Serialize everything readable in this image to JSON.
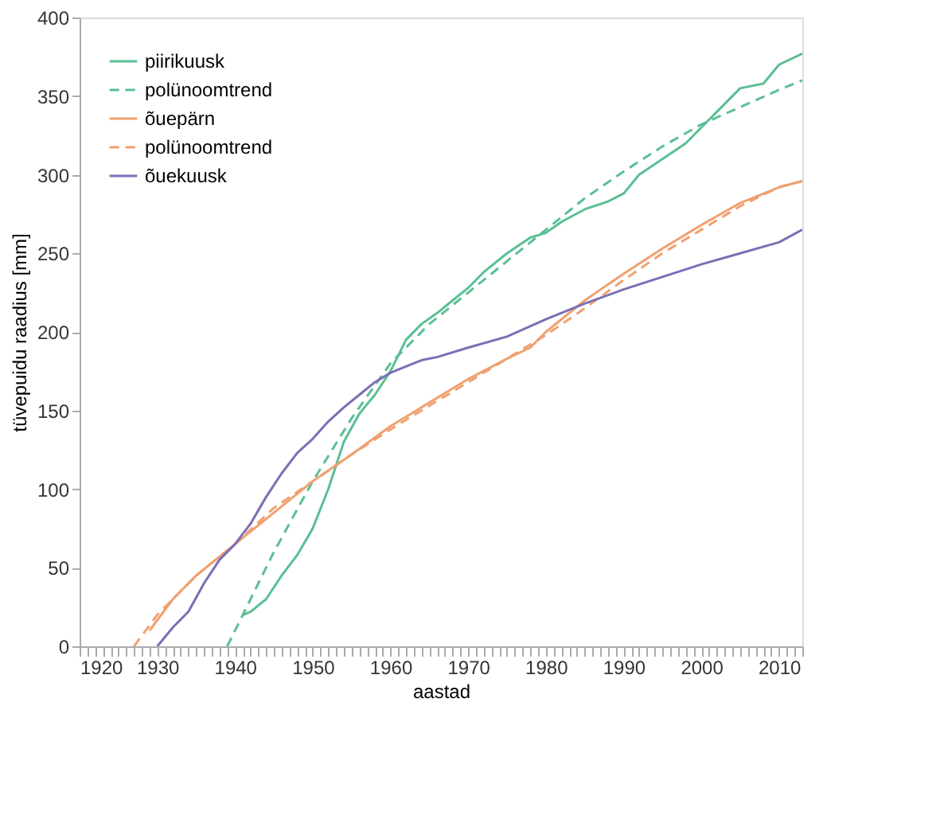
{
  "chart_data": {
    "type": "line",
    "xlabel": "aastad",
    "ylabel": "tüvepuidu raadius [mm]",
    "xlim": [
      1920,
      2013
    ],
    "ylim": [
      0,
      400
    ],
    "yticks": [
      0,
      50,
      100,
      150,
      200,
      250,
      300,
      350,
      400
    ],
    "xticks": [
      1920,
      {
        "value": 1921,
        "label": null
      },
      {
        "value": 1922,
        "label": null
      },
      {
        "value": 1923,
        "label": null
      },
      {
        "value": 1924,
        "label": null
      },
      {
        "value": 1925,
        "label": null
      },
      {
        "value": 1926,
        "label": null
      },
      {
        "value": 1927,
        "label": null
      },
      {
        "value": 1928,
        "label": null
      },
      {
        "value": 1929,
        "label": null
      },
      1930,
      {
        "value": 1931,
        "label": null
      },
      {
        "value": 1932,
        "label": null
      },
      {
        "value": 1933,
        "label": null
      },
      {
        "value": 1934,
        "label": null
      },
      {
        "value": 1935,
        "label": null
      },
      {
        "value": 1936,
        "label": null
      },
      {
        "value": 1937,
        "label": null
      },
      {
        "value": 1938,
        "label": null
      },
      {
        "value": 1939,
        "label": null
      },
      1940,
      {
        "value": 1941,
        "label": null
      },
      {
        "value": 1942,
        "label": null
      },
      {
        "value": 1943,
        "label": null
      },
      {
        "value": 1944,
        "label": null
      },
      {
        "value": 1945,
        "label": null
      },
      {
        "value": 1946,
        "label": null
      },
      {
        "value": 1947,
        "label": null
      },
      {
        "value": 1948,
        "label": null
      },
      {
        "value": 1949,
        "label": null
      },
      1950,
      {
        "value": 1951,
        "label": null
      },
      {
        "value": 1952,
        "label": null
      },
      {
        "value": 1953,
        "label": null
      },
      {
        "value": 1954,
        "label": null
      },
      {
        "value": 1955,
        "label": null
      },
      {
        "value": 1956,
        "label": null
      },
      {
        "value": 1957,
        "label": null
      },
      {
        "value": 1958,
        "label": null
      },
      {
        "value": 1959,
        "label": null
      },
      1960,
      {
        "value": 1961,
        "label": null
      },
      {
        "value": 1962,
        "label": null
      },
      {
        "value": 1963,
        "label": null
      },
      {
        "value": 1964,
        "label": null
      },
      {
        "value": 1965,
        "label": null
      },
      {
        "value": 1966,
        "label": null
      },
      {
        "value": 1967,
        "label": null
      },
      {
        "value": 1968,
        "label": null
      },
      {
        "value": 1969,
        "label": null
      },
      1970,
      {
        "value": 1971,
        "label": null
      },
      {
        "value": 1972,
        "label": null
      },
      {
        "value": 1973,
        "label": null
      },
      {
        "value": 1974,
        "label": null
      },
      {
        "value": 1975,
        "label": null
      },
      {
        "value": 1976,
        "label": null
      },
      {
        "value": 1977,
        "label": null
      },
      {
        "value": 1978,
        "label": null
      },
      {
        "value": 1979,
        "label": null
      },
      1980,
      {
        "value": 1981,
        "label": null
      },
      {
        "value": 1982,
        "label": null
      },
      {
        "value": 1983,
        "label": null
      },
      {
        "value": 1984,
        "label": null
      },
      {
        "value": 1985,
        "label": null
      },
      {
        "value": 1986,
        "label": null
      },
      {
        "value": 1987,
        "label": null
      },
      {
        "value": 1988,
        "label": null
      },
      {
        "value": 1989,
        "label": null
      },
      1990,
      {
        "value": 1991,
        "label": null
      },
      {
        "value": 1992,
        "label": null
      },
      {
        "value": 1993,
        "label": null
      },
      {
        "value": 1994,
        "label": null
      },
      {
        "value": 1995,
        "label": null
      },
      {
        "value": 1996,
        "label": null
      },
      {
        "value": 1997,
        "label": null
      },
      {
        "value": 1998,
        "label": null
      },
      {
        "value": 1999,
        "label": null
      },
      2000,
      {
        "value": 2001,
        "label": null
      },
      {
        "value": 2002,
        "label": null
      },
      {
        "value": 2003,
        "label": null
      },
      {
        "value": 2004,
        "label": null
      },
      {
        "value": 2005,
        "label": null
      },
      {
        "value": 2006,
        "label": null
      },
      {
        "value": 2007,
        "label": null
      },
      {
        "value": 2008,
        "label": null
      },
      {
        "value": 2009,
        "label": null
      },
      2010,
      {
        "value": 2011,
        "label": null
      },
      {
        "value": 2012,
        "label": null
      },
      {
        "value": 2013,
        "label": null
      }
    ],
    "grid": false,
    "legend": "top left",
    "marker": "none",
    "series": [
      {
        "name": "piirikuusk",
        "color": "#5bbf94",
        "line_style": "solid",
        "x": [
          1941,
          1942,
          1944,
          1946,
          1948,
          1950,
          1952,
          1954,
          1956,
          1958,
          1960,
          1962,
          1964,
          1966,
          1968,
          1970,
          1972,
          1975,
          1978,
          1980,
          1982,
          1985,
          1988,
          1990,
          1992,
          1995,
          1998,
          2000,
          2003,
          2005,
          2008,
          2010,
          2013
        ],
        "values": [
          20,
          22,
          30,
          45,
          58,
          75,
          100,
          130,
          148,
          160,
          175,
          195,
          205,
          212,
          220,
          228,
          238,
          250,
          260,
          263,
          270,
          278,
          283,
          288,
          300,
          310,
          320,
          330,
          345,
          355,
          358,
          370,
          377
        ]
      },
      {
        "name": "polünoomtrend",
        "color": "#5bbf94",
        "line_style": "dashed",
        "x": [
          1939,
          1942,
          1945,
          1950,
          1955,
          1960,
          1965,
          1970,
          1975,
          1980,
          1985,
          1990,
          1995,
          2000,
          2005,
          2010,
          2013
        ],
        "values": [
          0,
          30,
          60,
          105,
          145,
          180,
          205,
          225,
          245,
          265,
          285,
          302,
          318,
          332,
          343,
          354,
          360
        ]
      },
      {
        "name": "õuepärn",
        "color": "#f0a070",
        "line_style": "solid",
        "x": [
          1929,
          1932,
          1935,
          1940,
          1945,
          1950,
          1955,
          1960,
          1965,
          1970,
          1975,
          1978,
          1980,
          1985,
          1990,
          1995,
          2000,
          2005,
          2010,
          2013
        ],
        "values": [
          10,
          30,
          45,
          65,
          85,
          105,
          122,
          140,
          155,
          170,
          183,
          190,
          200,
          220,
          237,
          253,
          268,
          282,
          292,
          296
        ]
      },
      {
        "name": "polünoomtrend",
        "color": "#f0a070",
        "line_style": "dashed",
        "x": [
          1927,
          1930,
          1935,
          1940,
          1945,
          1950,
          1955,
          1960,
          1965,
          1970,
          1975,
          1980,
          1985,
          1990,
          1995,
          2000,
          2005,
          2010,
          2013
        ],
        "values": [
          0,
          20,
          45,
          65,
          88,
          105,
          122,
          138,
          153,
          168,
          183,
          198,
          215,
          233,
          250,
          265,
          280,
          292,
          296
        ]
      },
      {
        "name": "õuekuusk",
        "color": "#7b6fb5",
        "line_style": "solid",
        "x": [
          1930,
          1932,
          1934,
          1936,
          1938,
          1940,
          1942,
          1944,
          1946,
          1948,
          1950,
          1952,
          1954,
          1956,
          1958,
          1960,
          1962,
          1964,
          1966,
          1970,
          1975,
          1980,
          1985,
          1990,
          1995,
          2000,
          2005,
          2010,
          2013
        ],
        "values": [
          0,
          12,
          22,
          40,
          55,
          65,
          78,
          95,
          110,
          123,
          132,
          143,
          152,
          160,
          168,
          174,
          178,
          182,
          184,
          190,
          197,
          208,
          218,
          227,
          235,
          243,
          250,
          257,
          265
        ]
      }
    ]
  }
}
